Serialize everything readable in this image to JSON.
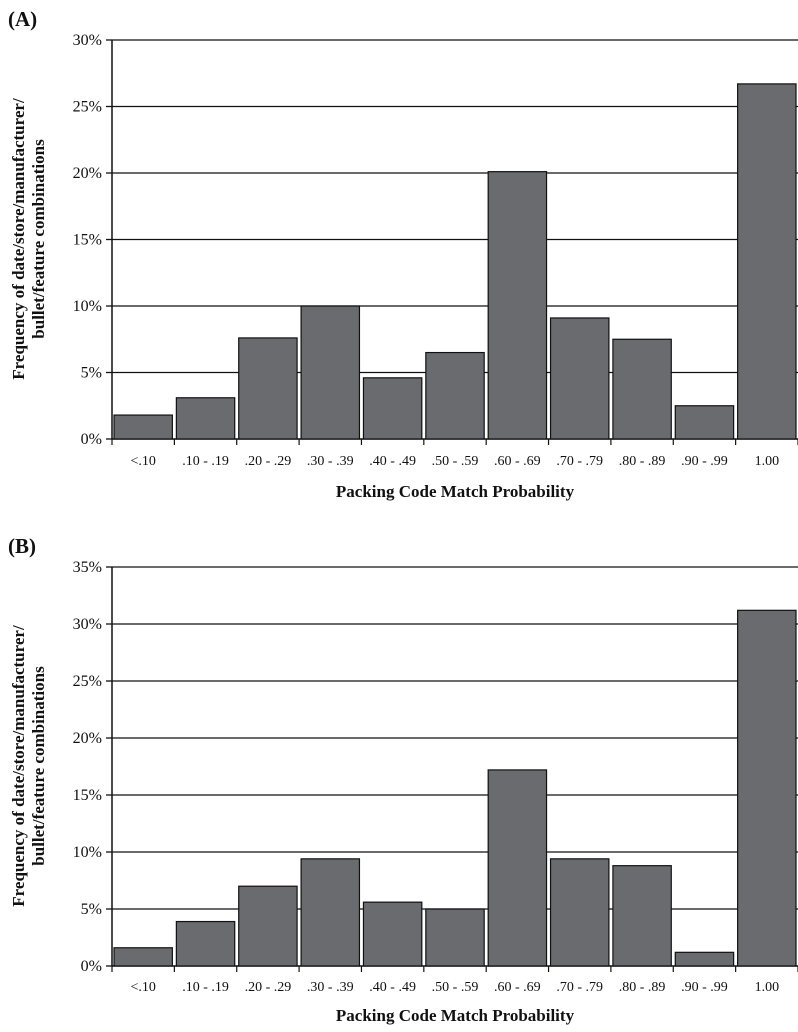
{
  "chart_data": [
    {
      "type": "bar",
      "panel_label": "(A)",
      "categories": [
        "<.10",
        ".10 - .19",
        ".20 - .29",
        ".30 - .39",
        ".40 - .49",
        ".50 - .59",
        ".60 - .69",
        ".70 - .79",
        ".80 - .89",
        ".90 - .99",
        "1.00"
      ],
      "values": [
        1.8,
        3.1,
        7.6,
        10.0,
        4.6,
        6.5,
        20.1,
        9.1,
        7.5,
        2.5,
        26.7
      ],
      "xlabel": "Packing Code Match Probability",
      "ylabel_lines": [
        "Frequency of date/store/manufacturer/",
        "bullet/feature combinations"
      ],
      "ylim": [
        0,
        30
      ],
      "yticks": [
        "0%",
        "5%",
        "10%",
        "15%",
        "20%",
        "25%",
        "30%"
      ],
      "grid": true,
      "bar_color": "#6a6b6f"
    },
    {
      "type": "bar",
      "panel_label": "(B)",
      "categories": [
        "<.10",
        ".10 - .19",
        ".20 - .29",
        ".30 - .39",
        ".40 - .49",
        ".50 - .59",
        ".60 - .69",
        ".70 - .79",
        ".80 - .89",
        ".90 - .99",
        "1.00"
      ],
      "values": [
        1.6,
        3.9,
        7.0,
        9.4,
        5.6,
        5.0,
        17.2,
        9.4,
        8.8,
        1.2,
        31.2
      ],
      "xlabel": "Packing Code Match Probability",
      "ylabel_lines": [
        "Frequency of date/store/manufacturer/",
        "bullet/feature combinations"
      ],
      "ylim": [
        0,
        35
      ],
      "yticks": [
        "0%",
        "5%",
        "10%",
        "15%",
        "20%",
        "25%",
        "30%",
        "35%"
      ],
      "grid": true,
      "bar_color": "#6a6b6f"
    }
  ]
}
